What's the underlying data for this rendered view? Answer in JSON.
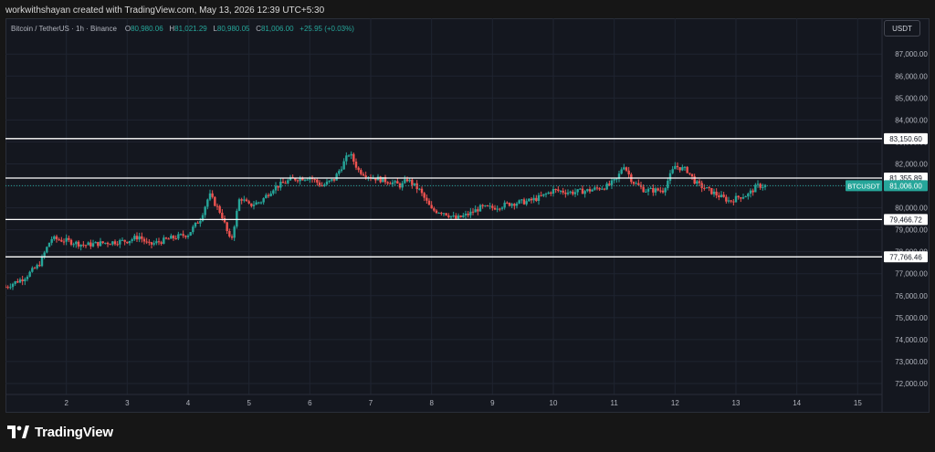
{
  "header": {
    "credit": "workwithshayan created with TradingView.com, May 13, 2026 12:39 UTC+5:30"
  },
  "legend": {
    "symbol": "Bitcoin / TetherUS · 1h · Binance",
    "o_key": "O",
    "o": "80,980.06",
    "h_key": "H",
    "h": "81,021.29",
    "l_key": "L",
    "l": "80,980.05",
    "c_key": "C",
    "c": "81,006.00",
    "change": "+25.95 (+0.03%)"
  },
  "currency_button": "USDT",
  "footer": {
    "brand": "TradingView"
  },
  "colors": {
    "up": "#26a69a",
    "down": "#ef5350",
    "grid": "#1f2430",
    "axis_text": "#b2b5be",
    "hline": "#ffffff",
    "price_tag": "#26a69a"
  },
  "chart_data": {
    "type": "candlestick",
    "symbol": "BTCUSDT",
    "interval": "1h",
    "x_ticks": [
      "2",
      "3",
      "4",
      "5",
      "6",
      "7",
      "8",
      "9",
      "10",
      "11",
      "12",
      "13",
      "14",
      "15"
    ],
    "y_ticks": [
      "87,000.00",
      "86,000.00",
      "85,000.00",
      "84,000.00",
      "83,000.00",
      "82,000.00",
      "81,000.00",
      "80,000.00",
      "79,000.00",
      "78,000.00",
      "77,000.00",
      "76,000.00",
      "75,000.00",
      "74,000.00",
      "73,000.00",
      "72,000.00"
    ],
    "ylim": [
      71500,
      87800
    ],
    "xlim": [
      1.0,
      15.4
    ],
    "horizontal_lines": [
      {
        "price": 83150.6,
        "label": "83,150.60"
      },
      {
        "price": 81355.89,
        "label": "81,355.89"
      },
      {
        "price": 79466.72,
        "label": "79,466.72"
      },
      {
        "price": 77766.46,
        "label": "77,766.46"
      }
    ],
    "last_price": {
      "price": 81006.0,
      "label": "81,006.00",
      "tag": "BTCUSDT"
    },
    "price_path": [
      [
        1.0,
        76400
      ],
      [
        1.3,
        76800
      ],
      [
        1.55,
        77400
      ],
      [
        1.75,
        78600
      ],
      [
        2.0,
        78500
      ],
      [
        2.3,
        78300
      ],
      [
        2.6,
        78400
      ],
      [
        3.0,
        78500
      ],
      [
        3.2,
        78700
      ],
      [
        3.35,
        78300
      ],
      [
        3.7,
        78600
      ],
      [
        4.0,
        78800
      ],
      [
        4.2,
        79500
      ],
      [
        4.35,
        80600
      ],
      [
        4.55,
        79700
      ],
      [
        4.7,
        78400
      ],
      [
        4.85,
        80500
      ],
      [
        5.0,
        80100
      ],
      [
        5.2,
        80300
      ],
      [
        5.4,
        80900
      ],
      [
        5.7,
        81300
      ],
      [
        6.0,
        81400
      ],
      [
        6.2,
        81000
      ],
      [
        6.4,
        81300
      ],
      [
        6.65,
        82500
      ],
      [
        6.8,
        81700
      ],
      [
        7.0,
        81400
      ],
      [
        7.3,
        81200
      ],
      [
        7.5,
        81000
      ],
      [
        7.6,
        81300
      ],
      [
        7.8,
        80800
      ],
      [
        8.0,
        79900
      ],
      [
        8.2,
        79800
      ],
      [
        8.4,
        79500
      ],
      [
        8.6,
        79700
      ],
      [
        8.8,
        80000
      ],
      [
        9.0,
        80000
      ],
      [
        9.3,
        80200
      ],
      [
        9.6,
        80300
      ],
      [
        9.8,
        80500
      ],
      [
        10.0,
        80800
      ],
      [
        10.3,
        80700
      ],
      [
        10.6,
        80800
      ],
      [
        10.9,
        81000
      ],
      [
        11.05,
        81300
      ],
      [
        11.15,
        82000
      ],
      [
        11.3,
        81200
      ],
      [
        11.5,
        80800
      ],
      [
        11.8,
        80800
      ],
      [
        12.0,
        81900
      ],
      [
        12.2,
        81700
      ],
      [
        12.35,
        81100
      ],
      [
        12.55,
        80800
      ],
      [
        12.75,
        80500
      ],
      [
        12.9,
        80300
      ],
      [
        13.05,
        80500
      ],
      [
        13.2,
        80600
      ],
      [
        13.35,
        81000
      ],
      [
        13.5,
        81006
      ]
    ]
  }
}
